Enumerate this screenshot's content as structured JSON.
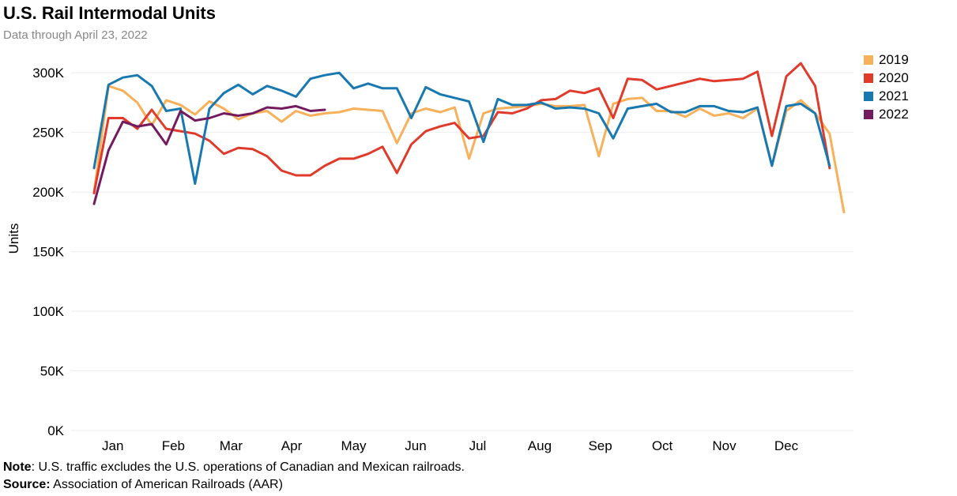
{
  "title": "U.S. Rail Intermodal Units",
  "subtitle": "Data through April 23, 2022",
  "note": {
    "label": "Note",
    "text": ": U.S. traffic excludes the U.S. operations of Canadian and Mexican railroads."
  },
  "source": {
    "label": "Source:",
    "text": " Association of American Railroads (AAR)"
  },
  "chart_data": {
    "type": "line",
    "xlabel": "",
    "ylabel": "Units",
    "x_unit": "week of year",
    "xlim": [
      1,
      53
    ],
    "ylim": [
      0,
      320000
    ],
    "grid": true,
    "legend_position": "top-right",
    "y_ticks": [
      {
        "value": 0,
        "label": "0K"
      },
      {
        "value": 50000,
        "label": "50K"
      },
      {
        "value": 100000,
        "label": "100K"
      },
      {
        "value": 150000,
        "label": "150K"
      },
      {
        "value": 200000,
        "label": "200K"
      },
      {
        "value": 250000,
        "label": "250K"
      },
      {
        "value": 300000,
        "label": "300K"
      }
    ],
    "x_ticks": [
      {
        "value": 2.3,
        "label": "Jan"
      },
      {
        "value": 6.5,
        "label": "Feb"
      },
      {
        "value": 10.5,
        "label": "Mar"
      },
      {
        "value": 14.7,
        "label": "Apr"
      },
      {
        "value": 19.0,
        "label": "May"
      },
      {
        "value": 23.3,
        "label": "Jun"
      },
      {
        "value": 27.6,
        "label": "Jul"
      },
      {
        "value": 31.9,
        "label": "Aug"
      },
      {
        "value": 36.1,
        "label": "Sep"
      },
      {
        "value": 40.4,
        "label": "Oct"
      },
      {
        "value": 44.7,
        "label": "Nov"
      },
      {
        "value": 49.0,
        "label": "Dec"
      }
    ],
    "series": [
      {
        "name": "2019",
        "color": "#F8B05A",
        "x_start": 1,
        "values": [
          200000,
          289000,
          285000,
          275000,
          256000,
          277000,
          273000,
          265000,
          276000,
          270000,
          261000,
          266000,
          268000,
          259000,
          268000,
          264000,
          266000,
          267000,
          270000,
          269000,
          268000,
          241000,
          266000,
          270000,
          267000,
          271000,
          228000,
          266000,
          270000,
          271000,
          272000,
          274000,
          272000,
          272000,
          273000,
          230000,
          274000,
          278000,
          279000,
          268000,
          268000,
          263000,
          270000,
          264000,
          266000,
          262000,
          270000,
          222000,
          268000,
          277000,
          266000,
          249000,
          183000
        ]
      },
      {
        "name": "2020",
        "color": "#E03A2B",
        "x_start": 1,
        "values": [
          199000,
          262000,
          262000,
          253000,
          269000,
          253000,
          251000,
          249000,
          243000,
          232000,
          237000,
          236000,
          230000,
          218000,
          214000,
          214000,
          222000,
          228000,
          228000,
          232000,
          238000,
          216000,
          240000,
          251000,
          255000,
          258000,
          245000,
          247000,
          267000,
          266000,
          270000,
          277000,
          278000,
          285000,
          283000,
          287000,
          262000,
          295000,
          294000,
          286000,
          289000,
          292000,
          295000,
          293000,
          294000,
          295000,
          301000,
          247000,
          297000,
          308000,
          289000,
          220000
        ]
      },
      {
        "name": "2021",
        "color": "#1878B0",
        "x_start": 1,
        "values": [
          220000,
          290000,
          296000,
          298000,
          289000,
          268000,
          270000,
          207000,
          270000,
          283000,
          290000,
          282000,
          289000,
          285000,
          280000,
          295000,
          298000,
          300000,
          287000,
          291000,
          287000,
          287000,
          262000,
          288000,
          282000,
          279000,
          276000,
          242000,
          278000,
          273000,
          273000,
          275000,
          270000,
          271000,
          270000,
          266000,
          245000,
          270000,
          272000,
          274000,
          267000,
          267000,
          272000,
          272000,
          268000,
          267000,
          271000,
          222000,
          272000,
          274000,
          266000,
          222000
        ]
      },
      {
        "name": "2022",
        "color": "#741B5F",
        "x_start": 1,
        "values": [
          190000,
          235000,
          259000,
          255000,
          257000,
          240000,
          268000,
          260000,
          262000,
          266000,
          264000,
          266000,
          271000,
          270000,
          272000,
          268000,
          269000
        ]
      }
    ]
  }
}
